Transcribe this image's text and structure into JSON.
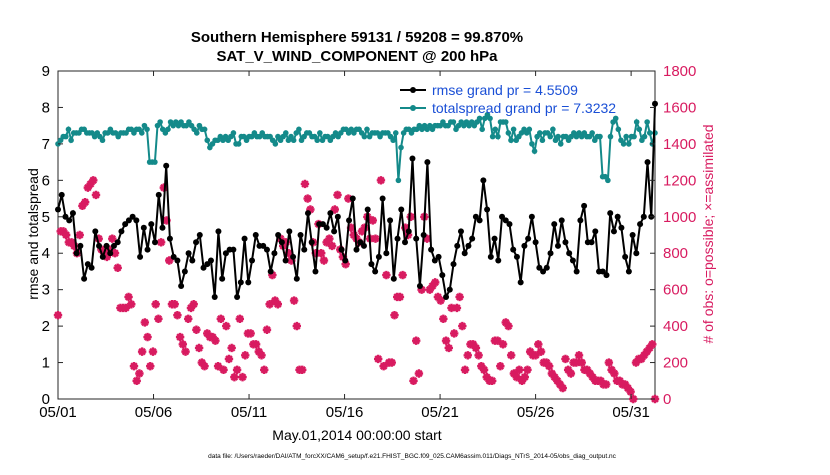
{
  "chart_data": {
    "type": "line",
    "title": "Southern Hemisphere 59131 / 59208 = 99.870%",
    "subtitle": "SAT_V_WIND_COMPONENT @ 200 hPa",
    "xlabel": "May.01,2014 00:00:00 start",
    "ylabel_left": "rmse and totalspread",
    "ylabel_right": "# of obs: o=possible; ×=assimilated",
    "footnote": "data file: /Users/raeder/DAI/ATM_forcXX/CAM6_setup/f.e21.FHIST_BGC.f09_025.CAM6assim.011/Diags_NTrS_2014-05/obs_diag_output.nc",
    "x_ticks": [
      "05/01",
      "05/06",
      "05/11",
      "05/16",
      "05/21",
      "05/26",
      "05/31"
    ],
    "x_tick_days": [
      1,
      6,
      11,
      16,
      21,
      26,
      31
    ],
    "xlim": [
      1,
      32.25
    ],
    "ylim_left": [
      0,
      9
    ],
    "ylim_right": [
      0,
      1800
    ],
    "y_ticks_left": [
      0,
      1,
      2,
      3,
      4,
      5,
      6,
      7,
      8,
      9
    ],
    "y_ticks_right": [
      0,
      200,
      400,
      600,
      800,
      1000,
      1200,
      1400,
      1600,
      1800
    ],
    "legend_position": "top-right",
    "colors": {
      "rmse": "#000000",
      "spread": "#148a8a",
      "obs": "#d81b60"
    },
    "series": [
      {
        "name": "rmse grand pr = 4.5509",
        "axis": "left",
        "color": "#000000",
        "values": [
          5.2,
          5.6,
          5.0,
          4.9,
          5.1,
          4.0,
          4.2,
          3.3,
          3.7,
          3.6,
          4.6,
          4.2,
          3.9,
          4.2,
          4.0,
          4.2,
          4.3,
          4.6,
          4.8,
          4.9,
          5.0,
          4.9,
          3.9,
          4.7,
          4.1,
          4.8,
          4.3,
          5.6,
          4.7,
          6.4,
          4.4,
          3.9,
          3.8,
          3.1,
          3.5,
          4.0,
          3.8,
          4.3,
          4.5,
          3.6,
          3.7,
          3.8,
          2.8,
          4.6,
          3.3,
          4.0,
          4.1,
          4.1,
          2.8,
          3.2,
          4.4,
          3.2,
          3.8,
          4.5,
          4.2,
          4.2,
          4.1,
          3.5,
          4.0,
          4.5,
          4.3,
          3.8,
          4.6,
          3.9,
          3.3,
          4.5,
          4.1,
          5.1,
          4.3,
          3.5,
          4.8,
          4.8,
          4.7,
          5.1,
          4.6,
          5.0,
          4.1,
          3.8,
          4.9,
          5.5,
          4.1,
          4.3,
          4.2,
          5.2,
          3.7,
          3.5,
          3.9,
          5.5,
          4.0,
          4.9,
          3.3,
          4.4,
          5.2,
          4.3,
          4.6,
          6.6,
          4.4,
          3.1,
          4.5,
          6.5,
          4.1,
          3.8,
          3.9,
          3.4,
          2.8,
          3.0,
          3.7,
          4.2,
          4.6,
          4.0,
          4.2,
          4.4,
          5.0,
          4.9,
          6.0,
          5.2,
          3.9,
          4.4,
          3.8,
          5.0,
          4.9,
          4.8,
          4.1,
          3.9,
          3.2,
          4.2,
          4.4,
          5.0,
          4.3,
          3.6,
          3.5,
          3.6,
          4.0,
          4.8,
          4.2,
          4.9,
          4.3,
          4.0,
          3.8,
          3.5,
          4.9,
          5.3,
          4.3,
          4.3,
          4.6,
          3.5,
          3.5,
          3.4,
          5.1,
          4.6,
          5.0,
          4.7,
          3.9,
          3.5,
          4.5,
          4.0,
          4.8,
          5.0,
          6.5,
          5.0,
          8.1
        ]
      },
      {
        "name": "totalspread grand pr = 7.3232",
        "axis": "left",
        "color": "#148a8a",
        "values": [
          7.0,
          7.1,
          7.2,
          7.2,
          7.4,
          7.1,
          7.3,
          7.3,
          7.3,
          7.4,
          7.4,
          7.3,
          7.3,
          7.3,
          7.2,
          7.3,
          7.2,
          7.1,
          7.3,
          7.3,
          7.4,
          7.3,
          7.3,
          7.2,
          7.3,
          7.3,
          7.3,
          7.4,
          7.4,
          7.3,
          7.4,
          7.4,
          7.3,
          7.5,
          7.4,
          6.5,
          6.5,
          6.5,
          7.5,
          7.6,
          7.4,
          7.3,
          7.4,
          7.6,
          7.5,
          7.6,
          7.5,
          7.6,
          7.5,
          7.5,
          7.6,
          7.5,
          7.4,
          7.3,
          7.5,
          7.4,
          7.4,
          7.1,
          6.9,
          7.0,
          7.1,
          7.1,
          7.2,
          7.1,
          7.2,
          7.1,
          7.2,
          7.3,
          7.0,
          7.0,
          7.2,
          7.2,
          7.1,
          7.2,
          7.2,
          7.3,
          7.2,
          7.2,
          7.3,
          7.2,
          7.2,
          7.2,
          7.1,
          7.0,
          7.2,
          7.1,
          7.2,
          7.3,
          7.1,
          7.2,
          7.1,
          7.3,
          7.4,
          7.1,
          7.2,
          7.3,
          7.3,
          7.2,
          7.2,
          7.1,
          7.3,
          7.1,
          7.2,
          7.2,
          7.1,
          7.2,
          7.3,
          7.2,
          7.3,
          7.4,
          7.4,
          7.3,
          7.4,
          7.3,
          7.4,
          7.4,
          7.3,
          7.2,
          7.4,
          7.2,
          7.3,
          7.3,
          7.3,
          7.2,
          7.3,
          7.3,
          7.3,
          7.2,
          7.1,
          7.3,
          6.0,
          6.9,
          7.3,
          7.4,
          7.4,
          7.3,
          7.4,
          7.4,
          7.5,
          7.4,
          7.5,
          7.4,
          7.5,
          7.4,
          7.5,
          7.5,
          7.5,
          7.6,
          7.5,
          7.5,
          7.6,
          7.6,
          7.4,
          7.5,
          7.6,
          7.5,
          7.6,
          7.5,
          7.6,
          7.5,
          7.6,
          7.7,
          7.4,
          7.7,
          7.8,
          7.7,
          7.2,
          7.4,
          7.2,
          7.6,
          7.6,
          7.6,
          7.3,
          7.1,
          7.4,
          7.1,
          7.2,
          7.3,
          7.4,
          7.3,
          7.4,
          7.0,
          6.8,
          7.2,
          7.3,
          7.1,
          7.3,
          7.3,
          7.2,
          7.4,
          7.1,
          7.2,
          7.0,
          7.2,
          7.2,
          7.1,
          7.2,
          7.3,
          7.2,
          7.3,
          7.2,
          7.3,
          7.2,
          7.2,
          7.3,
          7.1,
          7.2,
          7.2,
          6.1,
          6.1,
          6.0,
          7.2,
          7.6,
          7.7,
          7.4,
          7.1,
          7.0,
          7.2,
          7.0,
          7.2,
          7.2,
          7.6,
          7.4,
          7.1,
          7.2,
          7.6,
          7.3,
          7.0,
          7.3
        ]
      },
      {
        "name": "obs assimilated",
        "axis": "right",
        "color": "#d81b60",
        "values": [
          460,
          920,
          920,
          900,
          860,
          860,
          840,
          800,
          900,
          1060,
          1080,
          1160,
          1180,
          1200,
          1120,
          880,
          820,
          800,
          780,
          820,
          880,
          800,
          720,
          500,
          500,
          500,
          560,
          520,
          180,
          100,
          140,
          260,
          420,
          340,
          180,
          260,
          520,
          440,
          860,
          1160,
          980,
          760,
          520,
          520,
          460,
          340,
          300,
          260,
          440,
          500,
          520,
          380,
          280,
          200,
          180,
          360,
          340,
          340,
          320,
          180,
          440,
          160,
          400,
          220,
          280,
          120,
          160,
          440,
          120,
          240,
          360,
          360,
          300,
          300,
          260,
          240,
          160,
          380,
          520,
          680,
          540,
          520,
          880,
          840,
          860,
          800,
          760,
          540,
          400,
          160,
          160,
          1180,
          1100,
          1040,
          860,
          800,
          960,
          800,
          760,
          860,
          880,
          840,
          1040,
          1120,
          820,
          780,
          740,
          1100,
          940,
          900,
          880,
          860,
          920,
          940,
          1000,
          880,
          980,
          880,
          220,
          1200,
          180,
          680,
          200,
          200,
          460,
          560,
          560,
          680,
          940,
          900,
          1000,
          100,
          320,
          140,
          600,
          1000,
          880,
          600,
          620,
          640,
          560,
          540,
          440,
          320,
          280,
          500,
          360,
          500,
          560,
          400,
          160,
          240,
          300,
          300,
          280,
          240,
          180,
          160,
          120,
          100,
          100,
          320,
          320,
          180,
          300,
          420,
          400,
          240,
          140,
          120,
          160,
          100,
          120,
          160,
          260,
          240,
          240,
          300,
          260,
          200,
          200,
          180,
          140,
          120,
          100,
          80,
          60,
          220,
          160,
          140,
          200,
          200,
          240,
          200,
          160,
          160,
          140,
          120,
          100,
          100,
          100,
          80,
          80,
          200,
          160,
          140,
          100,
          100,
          80,
          80,
          60,
          40,
          0,
          200,
          220,
          220,
          240,
          260,
          280,
          300,
          0
        ]
      }
    ]
  }
}
